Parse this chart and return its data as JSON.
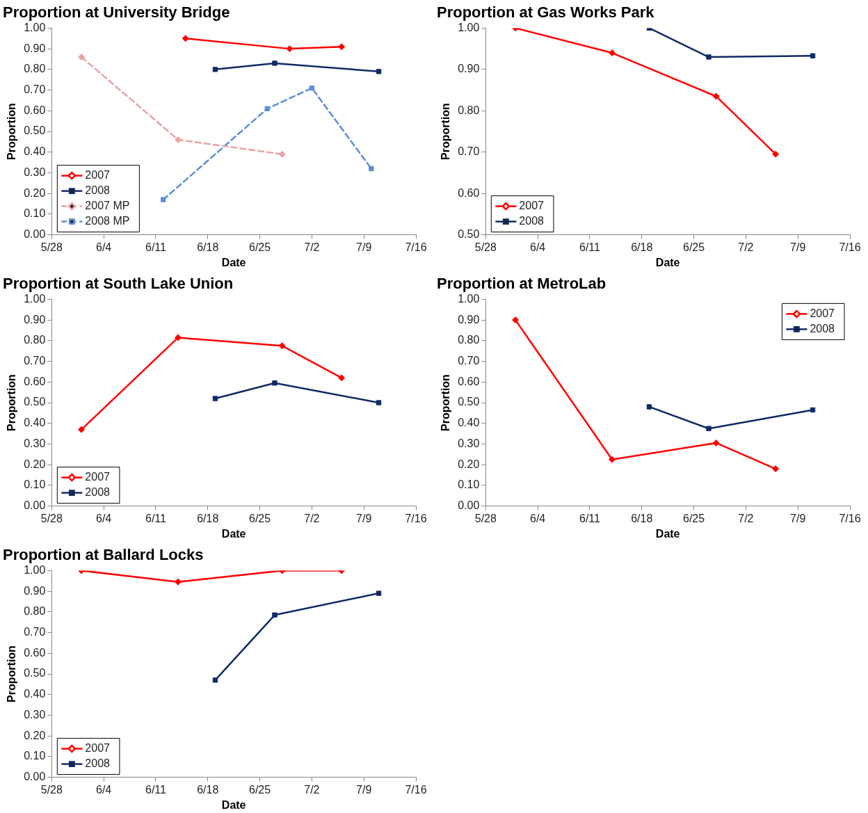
{
  "chart_data": [
    {
      "type": "line",
      "title": "Proportion at University Bridge",
      "xlabel": "Date",
      "ylabel": "Proportion",
      "legend": "bottom left",
      "grid": false,
      "xlim": [
        "--05-28",
        "--07-16"
      ],
      "xticks": [
        {
          "value": "--05-28",
          "label": "5/28"
        },
        {
          "value": "--06-04",
          "label": "6/4"
        },
        {
          "value": "--06-11",
          "label": "6/11"
        },
        {
          "value": "--06-18",
          "label": "6/18"
        },
        {
          "value": "--06-25",
          "label": "6/25"
        },
        {
          "value": "--07-02",
          "label": "7/2"
        },
        {
          "value": "--07-09",
          "label": "7/9"
        },
        {
          "value": "--07-16",
          "label": "7/16"
        }
      ],
      "ylim": [
        0,
        1
      ],
      "yticks": [
        {
          "value": 0,
          "label": "0.00"
        },
        {
          "value": 0.1,
          "label": "0.10"
        },
        {
          "value": 0.2,
          "label": "0.20"
        },
        {
          "value": 0.3,
          "label": "0.30"
        },
        {
          "value": 0.4,
          "label": "0.40"
        },
        {
          "value": 0.5,
          "label": "0.50"
        },
        {
          "value": 0.6,
          "label": "0.60"
        },
        {
          "value": 0.7,
          "label": "0.70"
        },
        {
          "value": 0.8,
          "label": "0.80"
        },
        {
          "value": 0.9,
          "label": "0.90"
        },
        {
          "value": 1,
          "label": "1.00"
        }
      ],
      "series": [
        {
          "name": "2007",
          "color": "#ff0000",
          "marker": "diamond",
          "line_style": "solid",
          "x": [
            "--06-15",
            "--06-29",
            "--07-06"
          ],
          "values": [
            0.95,
            0.9,
            0.91
          ]
        },
        {
          "name": "2008",
          "color": "#0f2a66",
          "marker": "square",
          "line_style": "solid",
          "x": [
            "--06-19",
            "--06-27",
            "--07-11"
          ],
          "values": [
            0.8,
            0.83,
            0.79
          ]
        },
        {
          "name": "2007 MP",
          "color": "#e8a3a3",
          "marker": "diamond",
          "line_style": "dashed",
          "x": [
            "--06-01",
            "--06-14",
            "--06-28"
          ],
          "values": [
            0.86,
            0.46,
            0.39
          ]
        },
        {
          "name": "2008 MP",
          "color": "#5b8ed8",
          "marker": "square",
          "line_style": "dashed",
          "x": [
            "--06-12",
            "--06-26",
            "--07-02",
            "--07-10"
          ],
          "values": [
            0.17,
            0.61,
            0.71,
            0.32
          ]
        }
      ]
    },
    {
      "type": "line",
      "title": "Proportion at Gas Works Park",
      "xlabel": "Date",
      "ylabel": "Proportion",
      "legend": "bottom left",
      "grid": false,
      "xlim": [
        "--05-28",
        "--07-16"
      ],
      "xticks": [
        {
          "value": "--05-28",
          "label": "5/28"
        },
        {
          "value": "--06-04",
          "label": "6/4"
        },
        {
          "value": "--06-11",
          "label": "6/11"
        },
        {
          "value": "--06-18",
          "label": "6/18"
        },
        {
          "value": "--06-25",
          "label": "6/25"
        },
        {
          "value": "--07-02",
          "label": "7/2"
        },
        {
          "value": "--07-09",
          "label": "7/9"
        },
        {
          "value": "--07-16",
          "label": "7/16"
        }
      ],
      "ylim": [
        0.5,
        1
      ],
      "yticks": [
        {
          "value": 0.5,
          "label": "0.50"
        },
        {
          "value": 0.6,
          "label": "0.60"
        },
        {
          "value": 0.7,
          "label": "0.70"
        },
        {
          "value": 0.8,
          "label": "0.80"
        },
        {
          "value": 0.9,
          "label": "0.90"
        },
        {
          "value": 1,
          "label": "1.00"
        }
      ],
      "series": [
        {
          "name": "2007",
          "color": "#ff0000",
          "marker": "diamond",
          "line_style": "solid",
          "x": [
            "--06-01",
            "--06-14",
            "--06-28",
            "--07-06"
          ],
          "values": [
            1.0,
            0.94,
            0.835,
            0.695
          ]
        },
        {
          "name": "2008",
          "color": "#0f2a66",
          "marker": "square",
          "line_style": "solid",
          "x": [
            "--06-19",
            "--06-27",
            "--07-11"
          ],
          "values": [
            1.0,
            0.93,
            0.933
          ]
        }
      ]
    },
    {
      "type": "line",
      "title": "Proportion at South Lake Union",
      "xlabel": "Date",
      "ylabel": "Proportion",
      "legend": "bottom left",
      "grid": false,
      "xlim": [
        "--05-28",
        "--07-16"
      ],
      "xticks": [
        {
          "value": "--05-28",
          "label": "5/28"
        },
        {
          "value": "--06-04",
          "label": "6/4"
        },
        {
          "value": "--06-11",
          "label": "6/11"
        },
        {
          "value": "--06-18",
          "label": "6/18"
        },
        {
          "value": "--06-25",
          "label": "6/25"
        },
        {
          "value": "--07-02",
          "label": "7/2"
        },
        {
          "value": "--07-09",
          "label": "7/9"
        },
        {
          "value": "--07-16",
          "label": "7/16"
        }
      ],
      "ylim": [
        0,
        1
      ],
      "yticks": [
        {
          "value": 0,
          "label": "0.00"
        },
        {
          "value": 0.1,
          "label": "0.10"
        },
        {
          "value": 0.2,
          "label": "0.20"
        },
        {
          "value": 0.3,
          "label": "0.30"
        },
        {
          "value": 0.4,
          "label": "0.40"
        },
        {
          "value": 0.5,
          "label": "0.50"
        },
        {
          "value": 0.6,
          "label": "0.60"
        },
        {
          "value": 0.7,
          "label": "0.70"
        },
        {
          "value": 0.8,
          "label": "0.80"
        },
        {
          "value": 0.9,
          "label": "0.90"
        },
        {
          "value": 1,
          "label": "1.00"
        }
      ],
      "series": [
        {
          "name": "2007",
          "color": "#ff0000",
          "marker": "diamond",
          "line_style": "solid",
          "x": [
            "--06-01",
            "--06-14",
            "--06-28",
            "--07-06"
          ],
          "values": [
            0.37,
            0.815,
            0.775,
            0.62
          ]
        },
        {
          "name": "2008",
          "color": "#0f2a66",
          "marker": "square",
          "line_style": "solid",
          "x": [
            "--06-19",
            "--06-27",
            "--07-11"
          ],
          "values": [
            0.52,
            0.595,
            0.5
          ]
        }
      ]
    },
    {
      "type": "line",
      "title": "Proportion at MetroLab",
      "xlabel": "Date",
      "ylabel": "Proportion",
      "legend": "top right",
      "grid": false,
      "xlim": [
        "--05-28",
        "--07-16"
      ],
      "xticks": [
        {
          "value": "--05-28",
          "label": "5/28"
        },
        {
          "value": "--06-04",
          "label": "6/4"
        },
        {
          "value": "--06-11",
          "label": "6/11"
        },
        {
          "value": "--06-18",
          "label": "6/18"
        },
        {
          "value": "--06-25",
          "label": "6/25"
        },
        {
          "value": "--07-02",
          "label": "7/2"
        },
        {
          "value": "--07-09",
          "label": "7/9"
        },
        {
          "value": "--07-16",
          "label": "7/16"
        }
      ],
      "ylim": [
        0,
        1
      ],
      "yticks": [
        {
          "value": 0,
          "label": "0.00"
        },
        {
          "value": 0.1,
          "label": "0.10"
        },
        {
          "value": 0.2,
          "label": "0.20"
        },
        {
          "value": 0.3,
          "label": "0.30"
        },
        {
          "value": 0.4,
          "label": "0.40"
        },
        {
          "value": 0.5,
          "label": "0.50"
        },
        {
          "value": 0.6,
          "label": "0.60"
        },
        {
          "value": 0.7,
          "label": "0.70"
        },
        {
          "value": 0.8,
          "label": "0.80"
        },
        {
          "value": 0.9,
          "label": "0.90"
        },
        {
          "value": 1,
          "label": "1.00"
        }
      ],
      "series": [
        {
          "name": "2007",
          "color": "#ff0000",
          "marker": "diamond",
          "line_style": "solid",
          "x": [
            "--06-01",
            "--06-14",
            "--06-28",
            "--07-06"
          ],
          "values": [
            0.9,
            0.225,
            0.305,
            0.18
          ]
        },
        {
          "name": "2008",
          "color": "#0f2a66",
          "marker": "square",
          "line_style": "solid",
          "x": [
            "--06-19",
            "--06-27",
            "--07-11"
          ],
          "values": [
            0.48,
            0.375,
            0.465
          ]
        }
      ]
    },
    {
      "type": "line",
      "title": "Proportion at Ballard Locks",
      "xlabel": "Date",
      "ylabel": "Proportion",
      "legend": "bottom left",
      "grid": false,
      "xlim": [
        "--05-28",
        "--07-16"
      ],
      "xticks": [
        {
          "value": "--05-28",
          "label": "5/28"
        },
        {
          "value": "--06-04",
          "label": "6/4"
        },
        {
          "value": "--06-11",
          "label": "6/11"
        },
        {
          "value": "--06-18",
          "label": "6/18"
        },
        {
          "value": "--06-25",
          "label": "6/25"
        },
        {
          "value": "--07-02",
          "label": "7/2"
        },
        {
          "value": "--07-09",
          "label": "7/9"
        },
        {
          "value": "--07-16",
          "label": "7/16"
        }
      ],
      "ylim": [
        0,
        1
      ],
      "yticks": [
        {
          "value": 0,
          "label": "0.00"
        },
        {
          "value": 0.1,
          "label": "0.10"
        },
        {
          "value": 0.2,
          "label": "0.20"
        },
        {
          "value": 0.3,
          "label": "0.30"
        },
        {
          "value": 0.4,
          "label": "0.40"
        },
        {
          "value": 0.5,
          "label": "0.50"
        },
        {
          "value": 0.6,
          "label": "0.60"
        },
        {
          "value": 0.7,
          "label": "0.70"
        },
        {
          "value": 0.8,
          "label": "0.80"
        },
        {
          "value": 0.9,
          "label": "0.90"
        },
        {
          "value": 1,
          "label": "1.00"
        }
      ],
      "series": [
        {
          "name": "2007",
          "color": "#ff0000",
          "marker": "diamond",
          "line_style": "solid",
          "x": [
            "--06-01",
            "--06-14",
            "--06-28",
            "--07-06"
          ],
          "values": [
            1.0,
            0.945,
            1.0,
            1.0
          ]
        },
        {
          "name": "2008",
          "color": "#0f2a66",
          "marker": "square",
          "line_style": "solid",
          "x": [
            "--06-19",
            "--06-27",
            "--07-11"
          ],
          "values": [
            0.47,
            0.785,
            0.89
          ]
        }
      ]
    }
  ]
}
